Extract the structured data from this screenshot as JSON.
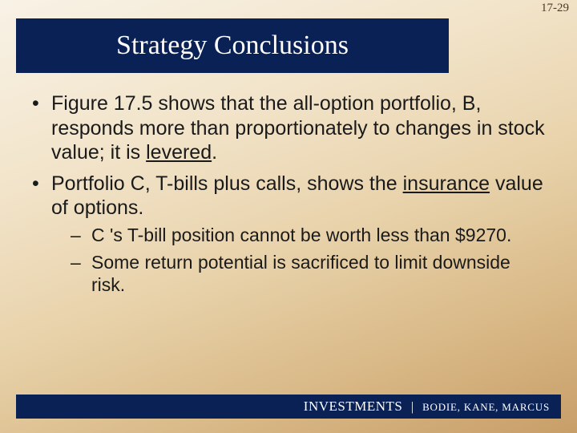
{
  "slide": {
    "number": "17-29",
    "title": "Strategy Conclusions"
  },
  "bullets": {
    "b1_pre": "Figure 17.5 shows that the all-option portfolio, B, responds more than proportionately to changes in stock value; it is ",
    "b1_u": "levered",
    "b1_post": ".",
    "b2_pre": "Portfolio C, T-bills plus calls, shows the ",
    "b2_u": "insurance",
    "b2_post": " value of options.",
    "b2_sub1": "C 's T-bill position cannot be worth less than $9270.",
    "b2_sub2": "Some return potential is sacrificed to limit downside risk."
  },
  "footer": {
    "brand": "INVESTMENTS",
    "separator": "|",
    "authors": "BODIE, KANE, MARCUS"
  },
  "colors": {
    "band": "#0a2155",
    "text": "#1a1a1a",
    "slide_number": "#4a3a28",
    "title_text": "#ffffff"
  }
}
